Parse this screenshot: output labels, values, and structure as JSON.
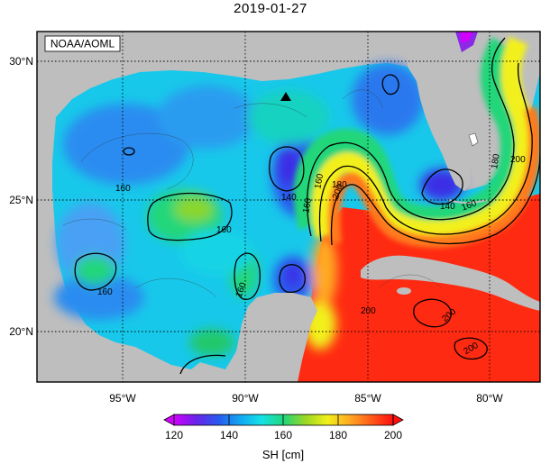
{
  "title": "2019-01-27",
  "credit": "NOAA/AOML",
  "lat_labels": [
    "30°N",
    "25°N",
    "20°N"
  ],
  "lon_labels": [
    "95°W",
    "90°W",
    "85°W",
    "80°W"
  ],
  "colorbar": {
    "ticks": [
      "120",
      "140",
      "160",
      "180",
      "200"
    ],
    "label": "SH [cm]",
    "colors": [
      "#d200ff",
      "#6a22ea",
      "#2a58ee",
      "#11a6f2",
      "#14e2e6",
      "#21d67a",
      "#9ad724",
      "#f2f01a",
      "#ffaa22",
      "#ff5a1a",
      "#ff1010"
    ]
  },
  "contour_labels": [
    "160",
    "160",
    "160",
    "160",
    "160",
    "140",
    "160",
    "180",
    "200",
    "200",
    "140",
    "160",
    "180",
    "200",
    "200",
    "200"
  ],
  "land_color": "#bebebe",
  "frame_color": "#000000"
}
